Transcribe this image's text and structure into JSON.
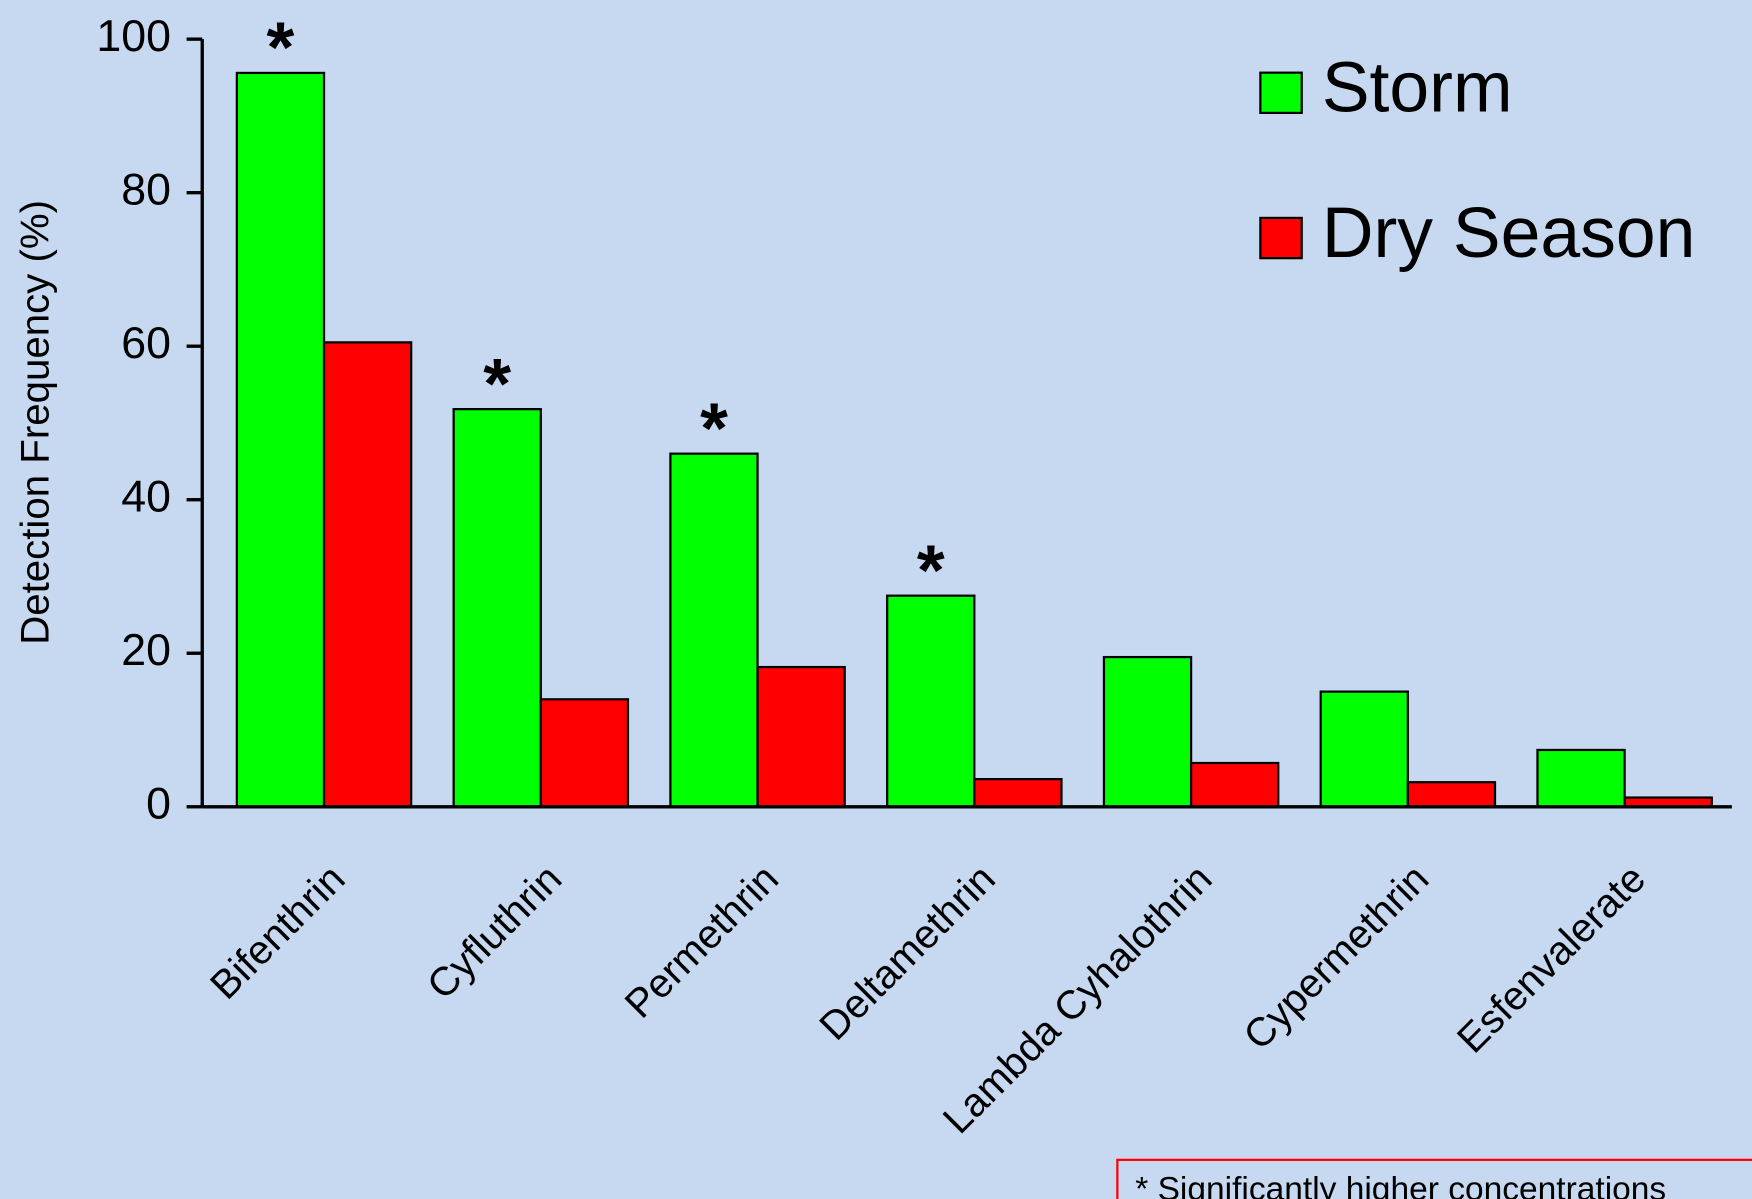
{
  "chart_data": {
    "type": "bar",
    "y_label": "Detection Frequency (%)",
    "categories": [
      "Bifenthrin",
      "Cyfluthrin",
      "Permethrin",
      "Deltamethrin",
      "Lambda Cyhalothrin",
      "Cypermethrin",
      "Esfenvalerate"
    ],
    "series": [
      {
        "name": "Storm",
        "color": "#00ff00",
        "values": [
          95.6,
          51.8,
          46,
          27.5,
          19.5,
          15,
          7.4
        ]
      },
      {
        "name": "Dry Season",
        "color": "#ff0000",
        "values": [
          60.5,
          14,
          18.2,
          3.6,
          5.7,
          3.2,
          1.2
        ]
      }
    ],
    "ylim": [
      0,
      100
    ],
    "yticks": [
      0,
      20,
      40,
      60,
      80,
      100
    ],
    "legend": "top-right",
    "annotations": [
      {
        "text": "*",
        "category": "Bifenthrin"
      },
      {
        "text": "*",
        "category": "Cyfluthrin"
      },
      {
        "text": "*",
        "category": "Permethrin"
      },
      {
        "text": "*",
        "category": "Deltamethrin"
      }
    ],
    "note": "* Significantly higher concentrations"
  }
}
